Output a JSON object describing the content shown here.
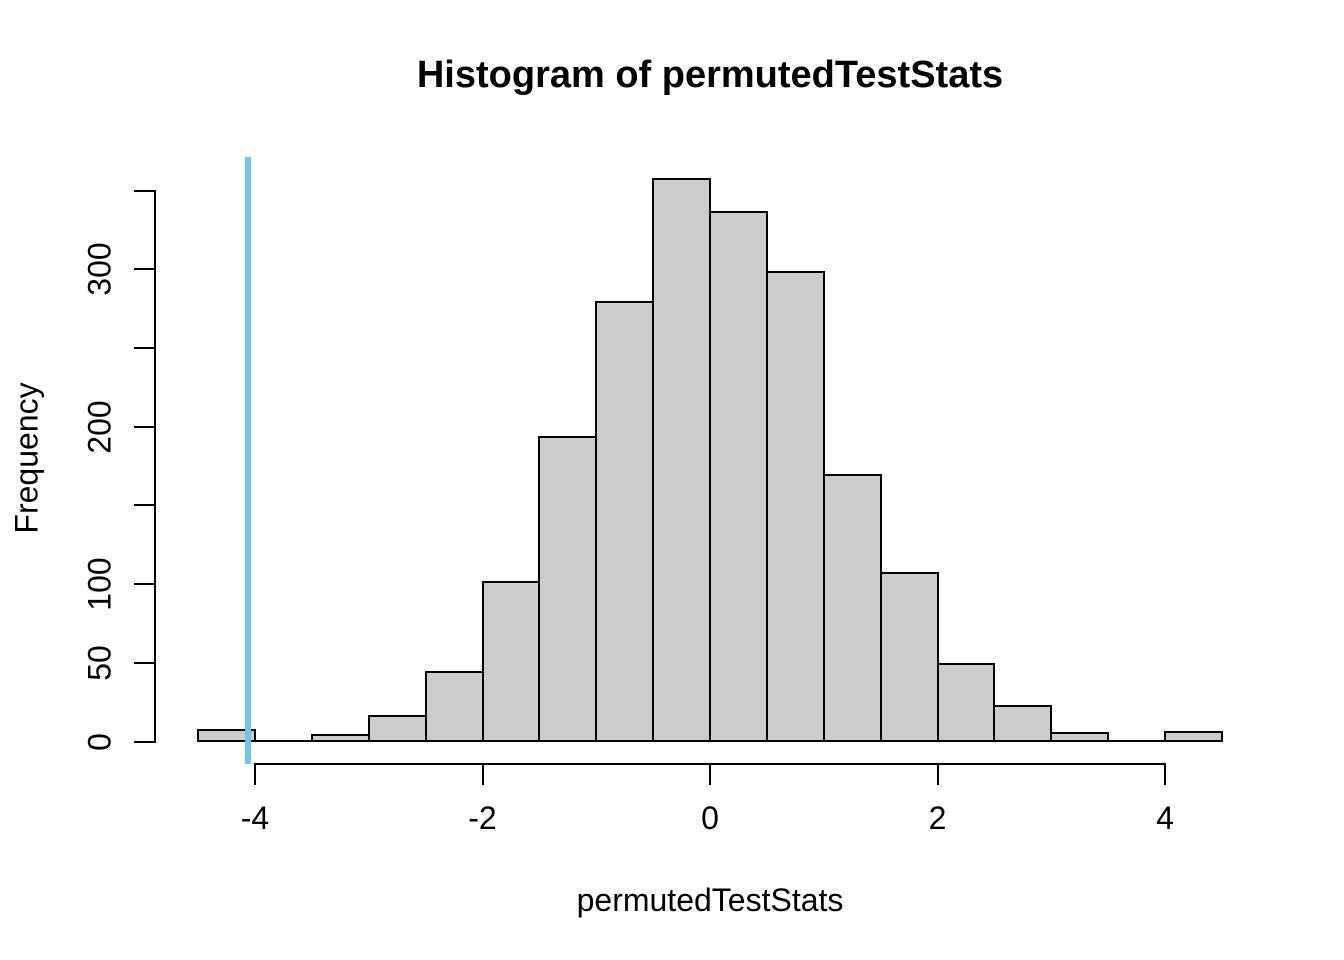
{
  "chart_data": {
    "type": "bar",
    "subtype": "histogram",
    "title": "Histogram of permutedTestStats",
    "xlabel": "permutedTestStats",
    "ylabel": "Frequency",
    "grid": false,
    "legend": false,
    "xlim": [
      -4.5,
      4.5
    ],
    "ylim": [
      0,
      350
    ],
    "bin_width": 0.5,
    "bins": [
      {
        "start": -4.5,
        "end": -4.0,
        "count": 7
      },
      {
        "start": -4.0,
        "end": -3.5,
        "count": 0
      },
      {
        "start": -3.5,
        "end": -3.0,
        "count": 4
      },
      {
        "start": -3.0,
        "end": -2.5,
        "count": 16
      },
      {
        "start": -2.5,
        "end": -2.0,
        "count": 44
      },
      {
        "start": -2.0,
        "end": -1.5,
        "count": 101
      },
      {
        "start": -1.5,
        "end": -1.0,
        "count": 193
      },
      {
        "start": -1.0,
        "end": -0.5,
        "count": 279
      },
      {
        "start": -0.5,
        "end": 0.0,
        "count": 357
      },
      {
        "start": 0.0,
        "end": 0.5,
        "count": 336
      },
      {
        "start": 0.5,
        "end": 1.0,
        "count": 298
      },
      {
        "start": 1.0,
        "end": 1.5,
        "count": 169
      },
      {
        "start": 1.5,
        "end": 2.0,
        "count": 107
      },
      {
        "start": 2.0,
        "end": 2.5,
        "count": 49
      },
      {
        "start": 2.5,
        "end": 3.0,
        "count": 22
      },
      {
        "start": 3.0,
        "end": 3.5,
        "count": 5
      },
      {
        "start": 3.5,
        "end": 4.0,
        "count": 0
      },
      {
        "start": 4.0,
        "end": 4.5,
        "count": 6
      }
    ],
    "x_ticks": [
      {
        "value": -4,
        "label": "-4"
      },
      {
        "value": -2,
        "label": "-2"
      },
      {
        "value": 0,
        "label": "0"
      },
      {
        "value": 2,
        "label": "2"
      },
      {
        "value": 4,
        "label": "4"
      }
    ],
    "y_ticks": [
      {
        "value": 0,
        "label": "0"
      },
      {
        "value": 50,
        "label": "50"
      },
      {
        "value": 100,
        "label": "100"
      },
      {
        "value": 150,
        "label": ""
      },
      {
        "value": 200,
        "label": "200"
      },
      {
        "value": 250,
        "label": ""
      },
      {
        "value": 300,
        "label": "300"
      },
      {
        "value": 350,
        "label": ""
      }
    ],
    "vline": {
      "x": -4.06,
      "color": "#74C4E8"
    },
    "colors": {
      "bar_fill": "#CCCCCC",
      "bar_border": "#000000",
      "axis": "#000000",
      "text": "#000000",
      "background": "#FFFFFF"
    }
  }
}
